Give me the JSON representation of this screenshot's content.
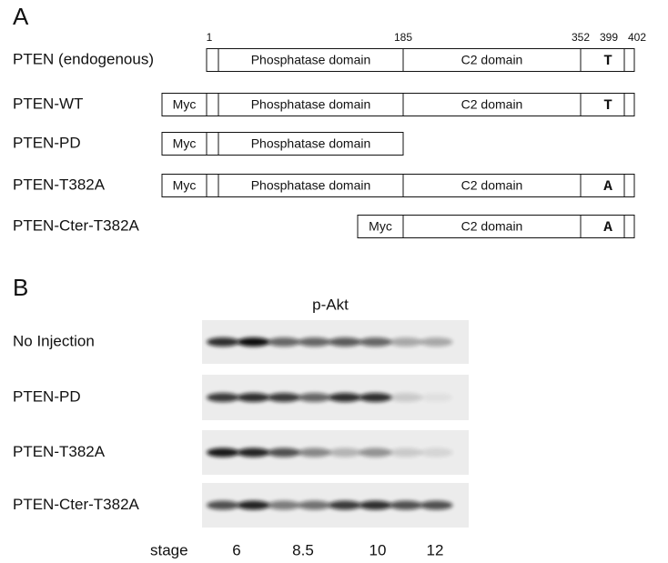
{
  "panel_a": {
    "label": "A",
    "positions": [
      "1",
      "185",
      "352",
      "399",
      "402"
    ],
    "constructs": [
      {
        "name": "PTEN (endogenous)",
        "segments": [
          "Phosphatase domain",
          "C2 domain",
          "T"
        ]
      },
      {
        "name": "PTEN-WT",
        "segments": [
          "Myc",
          "Phosphatase domain",
          "C2 domain",
          "T"
        ]
      },
      {
        "name": "PTEN-PD",
        "segments": [
          "Myc",
          "Phosphatase domain"
        ]
      },
      {
        "name": "PTEN-T382A",
        "segments": [
          "Myc",
          "Phosphatase domain",
          "C2 domain",
          "A"
        ]
      },
      {
        "name": "PTEN-Cter-T382A",
        "segments": [
          "Myc",
          "C2 domain",
          "A"
        ]
      }
    ]
  },
  "panel_b": {
    "label": "B",
    "title": "p-Akt",
    "rows": [
      "No Injection",
      "PTEN-PD",
      "PTEN-T382A",
      "PTEN-Cter-T382A"
    ],
    "stage_label": "stage",
    "stages": [
      "6",
      "8.5",
      "10",
      "12"
    ]
  }
}
